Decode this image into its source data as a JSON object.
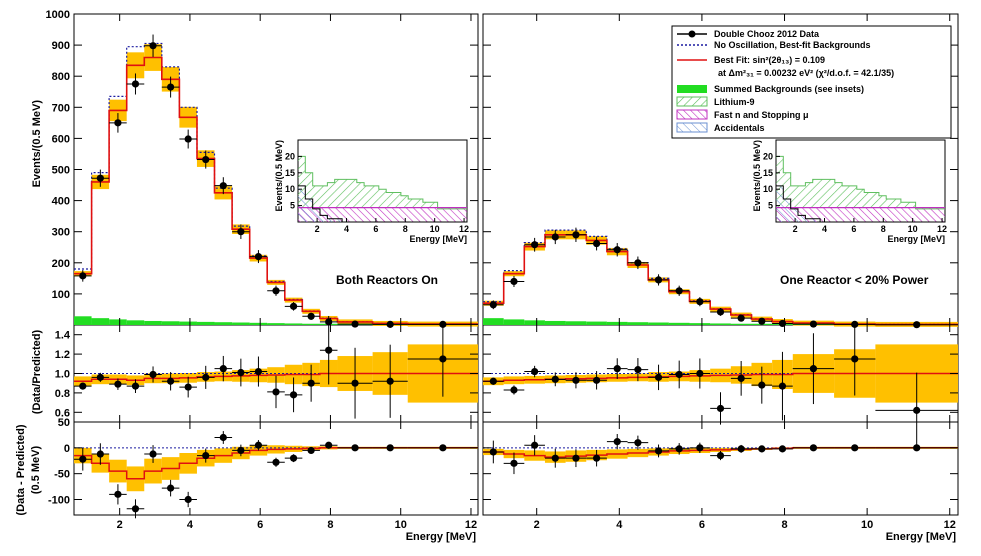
{
  "colors": {
    "data": "#000000",
    "no_oscillation": "#1a1aa0",
    "best_fit": "#e01010",
    "systematic_band": "#ffc000",
    "systematic_band_edge": "#ff9a00",
    "summed_backgrounds": "#22dd22",
    "lithium9": "#5fbf5f",
    "fast_neutron": "#c030c0",
    "accidentals": "#6a8fd0"
  },
  "legend": {
    "data": "Double Chooz 2012 Data",
    "no_osc": "No Oscillation, Best-fit Backgrounds",
    "best_fit": "Best Fit: sin²(2θ₁₃) = 0.109",
    "best_fit_line2": "at Δm²₃₁ = 0.00232 eV²  (χ²/d.o.f. = 42.1/35)",
    "bkg": "Summed Backgrounds (see insets)",
    "li9": "Lithium-9",
    "fastn": "Fast n and Stopping μ",
    "acc": "Accidentals"
  },
  "labels": {
    "top_y": "Events/(0.5 MeV)",
    "mid_y": "(Data/Predicted)",
    "bot_y_line1": "(Data - Predicted)",
    "bot_y_line2": "(0.5 MeV)",
    "x_left": "Energy [MeV]",
    "x_right": "Energy [MeV]",
    "inset_y": "Events/(0.5 MeV)",
    "inset_x": "Energy [MeV]",
    "left_annotation": "Both Reactors On",
    "right_annotation": "One Reactor < 20% Power"
  },
  "chart_data": [
    {
      "type": "line",
      "panel": "Both Reactors On (spectrum)",
      "xlabel": "Energy [MeV]",
      "ylabel": "Events/(0.5 MeV)",
      "xlim": [
        0.7,
        12.2
      ],
      "ylim": [
        0,
        1000
      ],
      "x_ticks": [
        2,
        4,
        6,
        8,
        10,
        12
      ],
      "y_ticks": [
        100,
        200,
        300,
        400,
        500,
        600,
        700,
        800,
        900,
        1000
      ],
      "bin_edges": [
        0.7,
        1.2,
        1.7,
        2.2,
        2.7,
        3.2,
        3.7,
        4.2,
        4.7,
        5.2,
        5.7,
        6.2,
        6.7,
        7.2,
        7.7,
        8.2,
        9.2,
        10.2,
        12.2
      ],
      "series": [
        {
          "name": "Double Chooz 2012 Data",
          "x": [
            0.95,
            1.45,
            1.95,
            2.45,
            2.95,
            3.45,
            3.95,
            4.45,
            4.95,
            5.45,
            5.95,
            6.45,
            6.95,
            7.45,
            7.95,
            8.7,
            9.7,
            11.2
          ],
          "values": [
            158,
            472,
            650,
            775,
            898,
            765,
            598,
            532,
            448,
            300,
            220,
            110,
            60,
            28,
            10,
            3,
            2,
            2
          ]
        },
        {
          "name": "No Oscillation, Best-fit Backgrounds",
          "values": [
            180,
            490,
            735,
            895,
            905,
            830,
            700,
            555,
            440,
            318,
            222,
            140,
            82,
            45,
            22,
            10,
            5,
            3
          ]
        },
        {
          "name": "Best Fit: sin²(2θ₁₃) = 0.109",
          "values": [
            165,
            460,
            690,
            835,
            860,
            790,
            668,
            535,
            425,
            308,
            215,
            137,
            80,
            44,
            21,
            10,
            5,
            3
          ]
        }
      ],
      "summed_backgrounds": [
        28,
        22,
        18,
        15,
        13,
        12,
        11,
        10,
        9,
        8,
        7,
        6,
        5,
        4,
        4,
        3,
        3,
        3
      ]
    },
    {
      "type": "line",
      "panel": "One Reactor < 20% Power (spectrum)",
      "xlabel": "Energy [MeV]",
      "xlim": [
        0.7,
        12.2
      ],
      "ylim": [
        0,
        1000
      ],
      "x_ticks": [
        2,
        4,
        6,
        8,
        10,
        12
      ],
      "bin_edges": [
        0.7,
        1.2,
        1.7,
        2.2,
        2.7,
        3.2,
        3.7,
        4.2,
        4.7,
        5.2,
        5.7,
        6.2,
        6.7,
        7.2,
        7.7,
        8.2,
        9.2,
        10.2,
        12.2
      ],
      "series": [
        {
          "name": "Double Chooz 2012 Data",
          "x": [
            0.95,
            1.45,
            1.95,
            2.45,
            2.95,
            3.45,
            3.95,
            4.45,
            4.95,
            5.45,
            5.95,
            6.45,
            6.95,
            7.45,
            7.95,
            8.7,
            9.7,
            11.2
          ],
          "values": [
            65,
            140,
            258,
            283,
            290,
            262,
            242,
            200,
            145,
            110,
            75,
            42,
            22,
            12,
            5,
            3,
            2,
            1
          ]
        },
        {
          "name": "No Oscillation, Best-fit Backgrounds",
          "values": [
            75,
            175,
            265,
            305,
            305,
            285,
            245,
            200,
            150,
            110,
            78,
            52,
            33,
            20,
            11,
            6,
            3,
            2
          ]
        },
        {
          "name": "Best Fit: sin²(2θ₁₃) = 0.109",
          "values": [
            70,
            165,
            252,
            290,
            290,
            272,
            236,
            193,
            145,
            107,
            76,
            51,
            32,
            19,
            11,
            6,
            3,
            2
          ]
        }
      ],
      "summed_backgrounds": [
        22,
        18,
        15,
        13,
        12,
        11,
        10,
        9,
        8,
        7,
        6,
        5,
        4,
        4,
        3,
        3,
        3,
        3
      ]
    },
    {
      "type": "line",
      "panel": "Background inset",
      "xlabel": "Energy [MeV]",
      "ylabel": "Events/(0.5 MeV)",
      "xlim": [
        0.7,
        12.2
      ],
      "ylim": [
        0,
        25
      ],
      "x_ticks": [
        2,
        4,
        6,
        8,
        10,
        12
      ],
      "y_ticks": [
        0,
        5,
        10,
        15,
        20
      ],
      "series": [
        {
          "name": "Lithium-9",
          "values": [
            20,
            15,
            11,
            11,
            12,
            13,
            13,
            13,
            12,
            11,
            11,
            10,
            9,
            9,
            8,
            7,
            6,
            4
          ]
        },
        {
          "name": "Fast n and Stopping μ",
          "values": [
            4.4,
            4.4,
            4.4,
            4.4,
            4.4,
            4.4,
            4.4,
            4.4,
            4.4,
            4.4,
            4.4,
            4.4,
            4.4,
            4.4,
            4.4,
            4.4,
            4.4,
            4.4
          ]
        },
        {
          "name": "Accidentals",
          "values": [
            11,
            7,
            4,
            2,
            1,
            1,
            0,
            0,
            0,
            0,
            0,
            0,
            0,
            0,
            0,
            0,
            0,
            0
          ]
        }
      ]
    },
    {
      "type": "scatter",
      "panel": "Both Reactors On (ratio)",
      "ylabel": "(Data/Predicted)",
      "xlim": [
        0.7,
        12.2
      ],
      "ylim": [
        0.5,
        1.5
      ],
      "y_ticks": [
        0.6,
        0.8,
        1.0,
        1.2,
        1.4
      ],
      "x": [
        0.95,
        1.45,
        1.95,
        2.45,
        2.95,
        3.45,
        3.95,
        4.45,
        4.95,
        5.45,
        5.95,
        6.45,
        6.95,
        7.45,
        7.95,
        8.7,
        9.7,
        11.2
      ],
      "values": [
        0.87,
        0.96,
        0.89,
        0.87,
        0.99,
        0.92,
        0.86,
        0.96,
        1.05,
        1.01,
        1.02,
        0.81,
        0.78,
        0.9,
        1.24,
        0.9,
        0.92,
        1.15
      ],
      "best_fit_ratio": [
        0.92,
        0.94,
        0.94,
        0.93,
        0.95,
        0.95,
        0.955,
        0.965,
        0.97,
        0.975,
        0.98,
        0.985,
        0.99,
        0.99,
        1.0,
        1.0,
        1.0,
        1.0
      ],
      "band_halfwidth": [
        0.05,
        0.05,
        0.05,
        0.05,
        0.05,
        0.05,
        0.05,
        0.05,
        0.05,
        0.06,
        0.07,
        0.08,
        0.1,
        0.12,
        0.14,
        0.18,
        0.22,
        0.3
      ]
    },
    {
      "type": "scatter",
      "panel": "One Reactor < 20% Power (ratio)",
      "xlim": [
        0.7,
        12.2
      ],
      "ylim": [
        0.5,
        1.5
      ],
      "x": [
        0.95,
        1.45,
        1.95,
        2.45,
        2.95,
        3.45,
        3.95,
        4.45,
        4.95,
        5.45,
        5.95,
        6.45,
        6.95,
        7.45,
        7.95,
        8.7,
        9.7,
        11.2
      ],
      "values": [
        0.92,
        0.83,
        1.02,
        0.94,
        0.93,
        0.93,
        1.05,
        1.04,
        0.96,
        0.99,
        1.0,
        0.64,
        0.95,
        0.88,
        0.87,
        1.05,
        1.15,
        0.62
      ],
      "best_fit_ratio": [
        0.92,
        0.93,
        0.935,
        0.94,
        0.945,
        0.95,
        0.955,
        0.96,
        0.965,
        0.97,
        0.975,
        0.98,
        0.985,
        0.99,
        0.99,
        1.0,
        1.0,
        1.0
      ],
      "band_halfwidth": [
        0.04,
        0.04,
        0.04,
        0.04,
        0.04,
        0.04,
        0.04,
        0.04,
        0.05,
        0.05,
        0.06,
        0.07,
        0.09,
        0.12,
        0.15,
        0.2,
        0.25,
        0.3
      ]
    },
    {
      "type": "scatter",
      "panel": "Both Reactors On (difference)",
      "ylabel": "(Data - Predicted) / (0.5 MeV)",
      "xlim": [
        0.7,
        12.2
      ],
      "ylim": [
        -130,
        50
      ],
      "y_ticks": [
        -100,
        -50,
        0,
        50
      ],
      "x": [
        0.95,
        1.45,
        1.95,
        2.45,
        2.95,
        3.45,
        3.95,
        4.45,
        4.95,
        5.45,
        5.95,
        6.45,
        6.95,
        7.45,
        7.95,
        8.7,
        9.7,
        11.2
      ],
      "values": [
        -22,
        -12,
        -90,
        -118,
        -12,
        -78,
        -100,
        -15,
        20,
        -5,
        5,
        -28,
        -20,
        -5,
        5,
        0,
        0,
        0
      ],
      "best_fit_diff": [
        -15,
        -30,
        -45,
        -60,
        -45,
        -40,
        -30,
        -20,
        -15,
        -10,
        -5,
        -3,
        -2,
        -1,
        0,
        0,
        0,
        0
      ],
      "band_halfwidth": [
        15,
        18,
        22,
        24,
        24,
        22,
        20,
        16,
        14,
        12,
        10,
        8,
        6,
        4,
        3,
        2,
        2,
        2
      ]
    },
    {
      "type": "scatter",
      "panel": "One Reactor < 20% Power (difference)",
      "xlim": [
        0.7,
        12.2
      ],
      "ylim": [
        -130,
        50
      ],
      "x": [
        0.95,
        1.45,
        1.95,
        2.45,
        2.95,
        3.45,
        3.95,
        4.45,
        4.95,
        5.45,
        5.95,
        6.45,
        6.95,
        7.45,
        7.95,
        8.7,
        9.7,
        11.2
      ],
      "values": [
        -8,
        -30,
        5,
        -20,
        -20,
        -20,
        12,
        10,
        -6,
        -2,
        0,
        -15,
        -2,
        -2,
        -2,
        0,
        0,
        0
      ],
      "best_fit_diff": [
        -8,
        -12,
        -15,
        -18,
        -16,
        -14,
        -12,
        -10,
        -8,
        -6,
        -5,
        -4,
        -3,
        -2,
        -1,
        0,
        0,
        0
      ],
      "band_halfwidth": [
        6,
        8,
        10,
        11,
        11,
        10,
        9,
        8,
        7,
        6,
        5,
        4,
        3,
        2,
        2,
        2,
        2,
        2
      ]
    }
  ]
}
